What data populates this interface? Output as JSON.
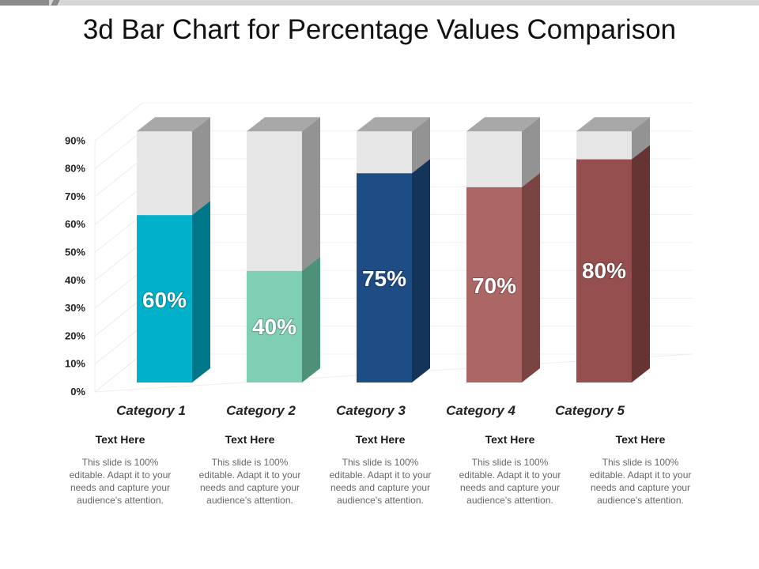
{
  "title": "3d Bar Chart for Percentage Values Comparison",
  "chart_data": {
    "type": "bar",
    "title": "3d Bar Chart for Percentage Values Comparison",
    "categories": [
      "Category 1",
      "Category 2",
      "Category 3",
      "Category 4",
      "Category  5"
    ],
    "values": [
      60,
      40,
      75,
      70,
      80
    ],
    "value_labels": [
      "60%",
      "40%",
      "75%",
      "70%",
      "80%"
    ],
    "capacity": 90,
    "ylim": [
      0,
      90
    ],
    "yticks": [
      0,
      10,
      20,
      30,
      40,
      50,
      60,
      70,
      80,
      90
    ],
    "ytick_labels": [
      "0%",
      "10%",
      "20%",
      "30%",
      "40%",
      "50%",
      "60%",
      "70%",
      "80%",
      "90%"
    ],
    "xlabel": "",
    "ylabel": "",
    "grid": true,
    "colors": [
      "#00b1c9",
      "#7fcfb4",
      "#1e4d86",
      "#ac6765",
      "#944f4e"
    ],
    "side_colors": [
      "#00768a",
      "#4d9178",
      "#153459",
      "#7a4443",
      "#663433"
    ],
    "empty_color": "#e6e6e6",
    "empty_side_color": "#939393",
    "cap_color": "#a8a8a8"
  },
  "descriptions": [
    {
      "title": "Text Here",
      "body": "This slide is 100% editable. Adapt it to your needs and capture your audience's attention."
    },
    {
      "title": "Text Here",
      "body": "This slide is 100% editable. Adapt it to your needs and capture your audience's attention."
    },
    {
      "title": "Text Here",
      "body": "This slide is 100% editable. Adapt it to your needs and capture your audience's attention."
    },
    {
      "title": "Text Here",
      "body": "This slide is 100% editable. Adapt it to your needs and capture your audience's attention."
    },
    {
      "title": "Text Here",
      "body": "This slide is 100% editable. Adapt it to your needs and capture your audience's attention."
    }
  ]
}
